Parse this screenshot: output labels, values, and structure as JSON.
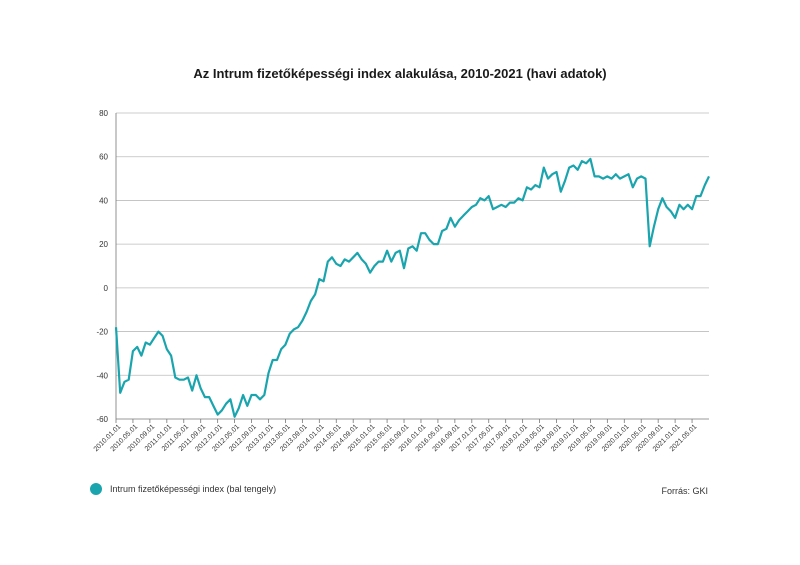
{
  "chart_data": {
    "type": "line",
    "title": "Az Intrum fizetőképességi index alakulása, 2010-2021 (havi adatok)",
    "ylim": [
      -60,
      80
    ],
    "yticks": [
      -60,
      -40,
      -20,
      0,
      20,
      40,
      60,
      80
    ],
    "xtick_labels": [
      "2010.01.01",
      "2010.05.01",
      "2010.09.01",
      "2011.01.01",
      "2011.05.01",
      "2011.09.01",
      "2012.01.01",
      "2012.05.01",
      "2012.09.01",
      "2013.01.01",
      "2013.05.01",
      "2013.09.01",
      "2014.01.01",
      "2014.05.01",
      "2014.09.01",
      "2015.01.01",
      "2015.05.01",
      "2015.09.01",
      "2016.01.01",
      "2016.05.01",
      "2016.09.01",
      "2017.01.01",
      "2017.05.01",
      "2017.09.01",
      "2018.01.01",
      "2018.05.01",
      "2018.09.01",
      "2019.01.01",
      "2019.05.01",
      "2019.09.01",
      "2020.01.01",
      "2020.05.01",
      "2020.09.01",
      "2021.01.01",
      "2021.05.01"
    ],
    "grid": true,
    "legend_position": "bottom-left",
    "color": "#1aa5ae",
    "series": [
      {
        "name": "Intrum fizetőképességi index (bal tengely)",
        "values": [
          -18,
          -48,
          -43,
          -42,
          -29,
          -27,
          -31,
          -25,
          -26,
          -23,
          -20,
          -22,
          -28,
          -31,
          -41,
          -42,
          -42,
          -41,
          -47,
          -40,
          -46,
          -50,
          -50,
          -54,
          -58,
          -56,
          -53,
          -51,
          -59,
          -55,
          -49,
          -54,
          -49,
          -49,
          -51,
          -49,
          -39,
          -33,
          -33,
          -28,
          -26,
          -21,
          -19,
          -18,
          -15,
          -11,
          -6,
          -3,
          4,
          3,
          12,
          14,
          11,
          10,
          13,
          12,
          14,
          16,
          13,
          11,
          7,
          10,
          12,
          12,
          17,
          12,
          16,
          17,
          9,
          18,
          19,
          17,
          25,
          25,
          22,
          20,
          20,
          26,
          27,
          32,
          28,
          31,
          33,
          35,
          37,
          38,
          41,
          40,
          42,
          36,
          37,
          38,
          37,
          39,
          39,
          41,
          40,
          46,
          45,
          47,
          46,
          55,
          50,
          52,
          53,
          44,
          49,
          55,
          56,
          54,
          58,
          57,
          59,
          51,
          51,
          50,
          51,
          50,
          52,
          50,
          51,
          52,
          46,
          50,
          51,
          50,
          19,
          28,
          36,
          41,
          37,
          35,
          32,
          38,
          36,
          38,
          36,
          42,
          42,
          47,
          51
        ]
      }
    ]
  },
  "legend": {
    "label": "Intrum fizetőképességi index (bal tengely)"
  },
  "source": "Forrás: GKI"
}
